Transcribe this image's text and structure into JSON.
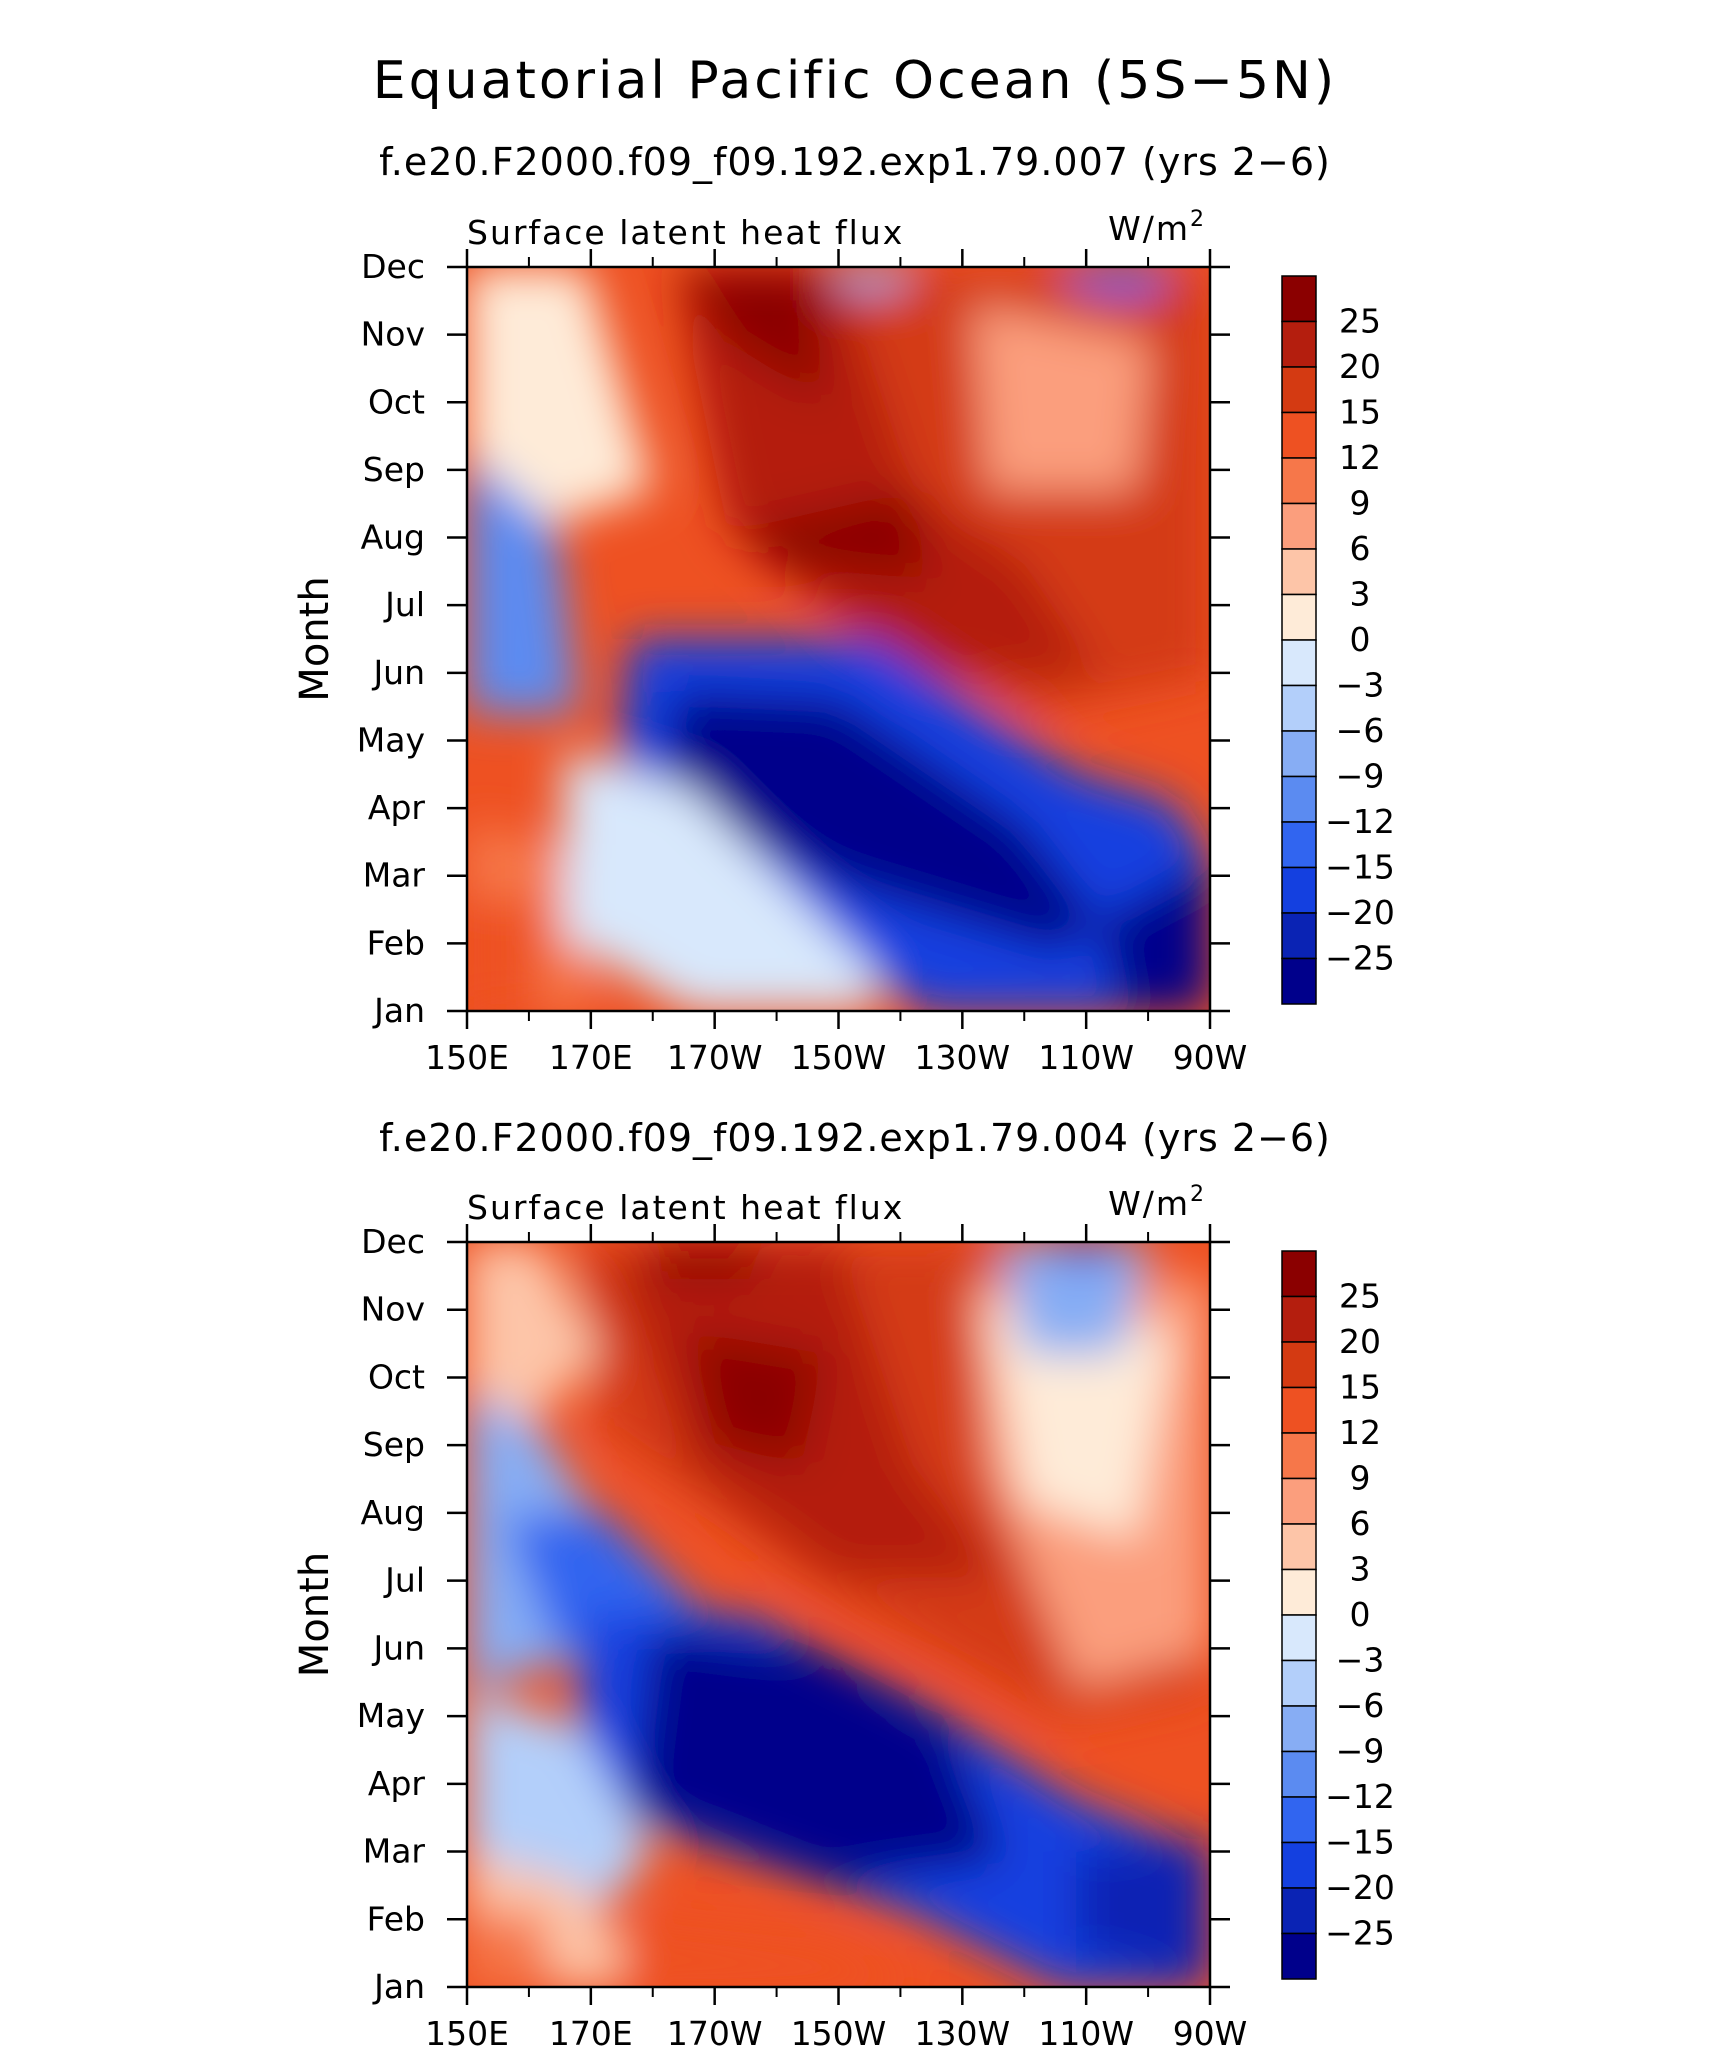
{
  "figure": {
    "title": "Equatorial Pacific Ocean (5S−5N)"
  },
  "chart_data": [
    {
      "type": "heatmap",
      "subtitle": "f.e20.F2000.f09_f09.192.exp1.79.007 (yrs 2−6)",
      "variable_label": "Surface latent heat flux",
      "units_base": "W/m",
      "units_exp": "2",
      "xlabel": "",
      "ylabel": "Month",
      "xticks": [
        "150E",
        "170E",
        "170W",
        "150W",
        "130W",
        "110W",
        "90W"
      ],
      "xlim": [
        150,
        270
      ],
      "yticks": [
        "Jan",
        "Feb",
        "Mar",
        "Apr",
        "May",
        "Jun",
        "Jul",
        "Aug",
        "Sep",
        "Oct",
        "Nov",
        "Dec"
      ],
      "colorbar": {
        "levels": [
          "25",
          "20",
          "15",
          "12",
          "9",
          "6",
          "3",
          "0",
          "−3",
          "−6",
          "−9",
          "−12",
          "−15",
          "−20",
          "−25"
        ],
        "colors": [
          "#8b0000",
          "#b41e0e",
          "#d43a12",
          "#ee5122",
          "#f6774a",
          "#fb9e7d",
          "#fdc5a8",
          "#feebd8",
          "#d8e8fc",
          "#b3cffa",
          "#87adf4",
          "#5b8bf1",
          "#3165f0",
          "#1440e0",
          "#0a23b4",
          "#00008b"
        ]
      },
      "description": "Anomaly field: warm (positive) mass in the upper-right, cold (negative) tongue centred near Mar–May between 170W and 110W, bounded by a diagonal front."
    },
    {
      "type": "heatmap",
      "subtitle": "f.e20.F2000.f09_f09.192.exp1.79.004 (yrs 2−6)",
      "variable_label": "Surface latent heat flux",
      "units_base": "W/m",
      "units_exp": "2",
      "xlabel": "",
      "ylabel": "Month",
      "xticks": [
        "150E",
        "170E",
        "170W",
        "150W",
        "130W",
        "110W",
        "90W"
      ],
      "xlim": [
        150,
        270
      ],
      "yticks": [
        "Jan",
        "Feb",
        "Mar",
        "Apr",
        "May",
        "Jun",
        "Jul",
        "Aug",
        "Sep",
        "Oct",
        "Nov",
        "Dec"
      ],
      "colorbar": {
        "levels": [
          "25",
          "20",
          "15",
          "12",
          "9",
          "6",
          "3",
          "0",
          "−3",
          "−6",
          "−9",
          "−12",
          "−15",
          "−20",
          "−25"
        ],
        "colors": [
          "#8b0000",
          "#b41e0e",
          "#d43a12",
          "#ee5122",
          "#f6774a",
          "#fb9e7d",
          "#fdc5a8",
          "#feebd8",
          "#d8e8fc",
          "#b3cffa",
          "#87adf4",
          "#5b8bf1",
          "#3165f0",
          "#1440e0",
          "#0a23b4",
          "#00008b"
        ]
      },
      "description": "Similar pattern: warm upper-right region, cold tongue Mar–Jun near 170W–130W, diagonal warm/cold front."
    }
  ]
}
